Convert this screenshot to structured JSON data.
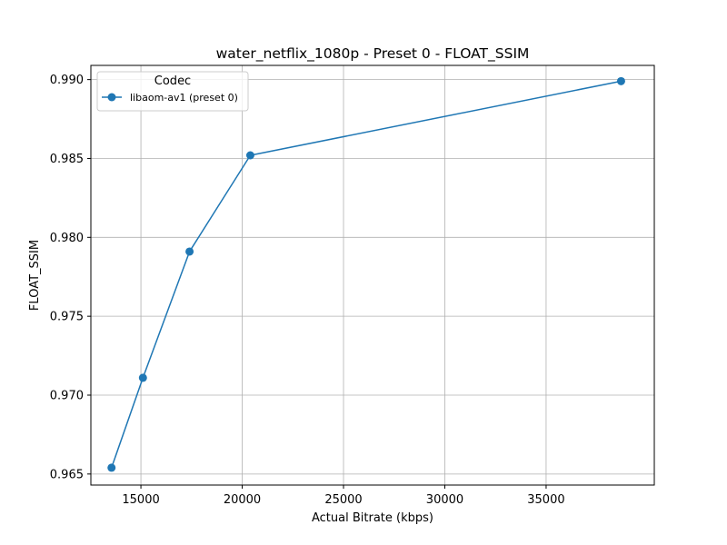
{
  "chart_data": {
    "type": "line",
    "title": "water_netflix_1080p - Preset 0 - FLOAT_SSIM",
    "xlabel": "Actual Bitrate (kbps)",
    "ylabel": "FLOAT_SSIM",
    "xlim": [
      12530,
      40340
    ],
    "ylim": [
      0.9643,
      0.9909
    ],
    "xticks": [
      15000,
      20000,
      25000,
      30000,
      35000
    ],
    "yticks": [
      0.965,
      0.97,
      0.975,
      0.98,
      0.985,
      0.99
    ],
    "grid": true,
    "legend": {
      "title": "Codec",
      "placement": "top-left"
    },
    "series": [
      {
        "name": "libaom-av1 (preset 0)",
        "color": "#1f77b4",
        "marker": "circle",
        "x": [
          13550,
          15100,
          17400,
          20400,
          38700
        ],
        "y": [
          0.9654,
          0.9711,
          0.9791,
          0.9852,
          0.9899
        ]
      }
    ]
  }
}
